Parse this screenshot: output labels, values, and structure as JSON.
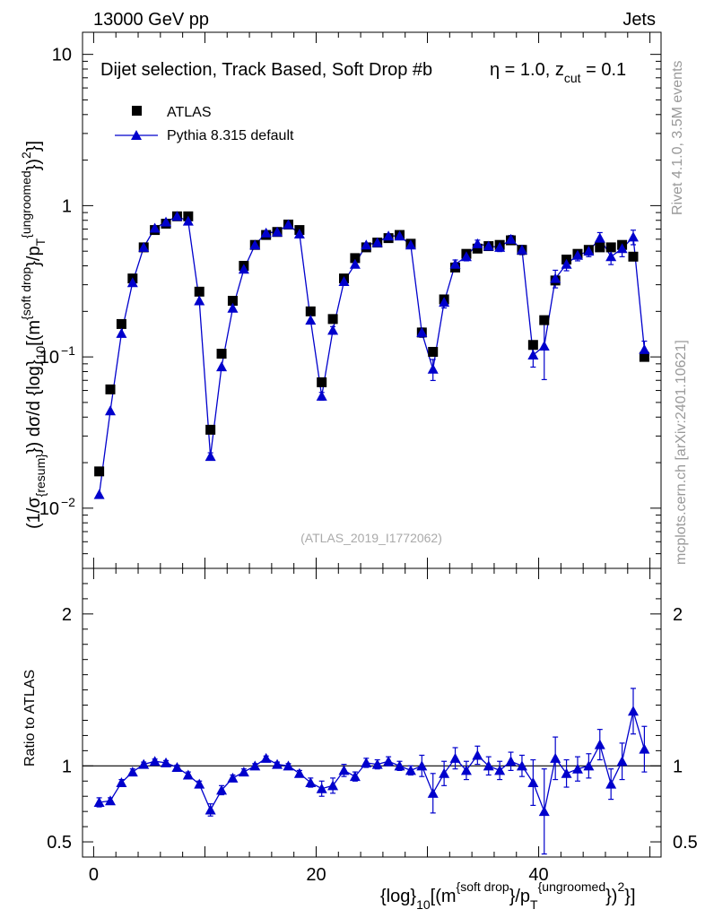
{
  "header": {
    "left": "13000 GeV pp",
    "right": "Jets"
  },
  "side_labels": {
    "rivet": "Rivet 4.1.0,  3.5M events",
    "mcplots": "mcplots.cern.ch [arXiv:2401.10621]"
  },
  "chart_data": [
    {
      "type": "scatter",
      "title": "Dijet selection, Track Based, Soft Drop #b",
      "title_tail_1": "η = 1.0, z",
      "title_tail_sub": "cut",
      "title_tail_2": " = 0.1",
      "ylabel": {
        "p1": "(1/σ",
        "s1": "{resum}",
        "p2": "}) dσ/d {log}",
        "s2": "10",
        "p3": "[(m",
        "sup1": "{soft drop",
        "p4": "}/p",
        "s3": "T",
        "sup2": "{ungroomed",
        "p5": "})",
        "sup3": "2",
        "p6": "}]"
      },
      "yscale": "log",
      "ylim": [
        0.004,
        14
      ],
      "xlim": [
        -1,
        51
      ],
      "y_ticks": [
        {
          "value": 10,
          "label": "10",
          "exp": ""
        },
        {
          "value": 1,
          "label": "1",
          "exp": ""
        },
        {
          "value": 0.1,
          "label": "10",
          "exp": "−1"
        },
        {
          "value": 0.01,
          "label": "10",
          "exp": "−2"
        }
      ],
      "watermark": "(ATLAS_2019_I1772062)",
      "legend": {
        "position": "top-left",
        "entries": [
          "ATLAS",
          "Pythia 8.315 default"
        ]
      },
      "series": [
        {
          "name": "ATLAS",
          "marker": "square",
          "color": "#000000",
          "x": [
            0.5,
            1.5,
            2.5,
            3.5,
            4.5,
            5.5,
            6.5,
            7.5,
            8.5,
            9.5,
            10.5,
            11.5,
            12.5,
            13.5,
            14.5,
            15.5,
            16.5,
            17.5,
            18.5,
            19.5,
            20.5,
            21.5,
            22.5,
            23.5,
            24.5,
            25.5,
            26.5,
            27.5,
            28.5,
            29.5,
            30.5,
            31.5,
            32.5,
            33.5,
            34.5,
            35.5,
            36.5,
            37.5,
            38.5,
            39.5,
            40.5,
            41.5,
            42.5,
            43.5,
            44.5,
            45.5,
            46.5,
            47.5,
            48.5,
            49.5
          ],
          "y": [
            0.0175,
            0.061,
            0.165,
            0.33,
            0.53,
            0.69,
            0.76,
            0.85,
            0.85,
            0.27,
            0.033,
            0.105,
            0.235,
            0.4,
            0.55,
            0.64,
            0.67,
            0.75,
            0.69,
            0.2,
            0.068,
            0.178,
            0.33,
            0.45,
            0.53,
            0.57,
            0.61,
            0.64,
            0.56,
            0.145,
            0.108,
            0.24,
            0.39,
            0.48,
            0.52,
            0.54,
            0.55,
            0.59,
            0.51,
            0.12,
            0.175,
            0.32,
            0.44,
            0.48,
            0.51,
            0.53,
            0.53,
            0.55,
            0.46,
            0.1
          ]
        },
        {
          "name": "Pythia 8.315 default",
          "marker": "triangle",
          "color": "#0000cc",
          "x": [
            0.5,
            1.5,
            2.5,
            3.5,
            4.5,
            5.5,
            6.5,
            7.5,
            8.5,
            9.5,
            10.5,
            11.5,
            12.5,
            13.5,
            14.5,
            15.5,
            16.5,
            17.5,
            18.5,
            19.5,
            20.5,
            21.5,
            22.5,
            23.5,
            24.5,
            25.5,
            26.5,
            27.5,
            28.5,
            29.5,
            30.5,
            31.5,
            32.5,
            33.5,
            34.5,
            35.5,
            36.5,
            37.5,
            38.5,
            39.5,
            40.5,
            41.5,
            42.5,
            43.5,
            44.5,
            45.5,
            46.5,
            47.5,
            48.5,
            49.5
          ],
          "y": [
            0.0123,
            0.044,
            0.143,
            0.31,
            0.53,
            0.71,
            0.78,
            0.85,
            0.79,
            0.235,
            0.022,
            0.086,
            0.21,
            0.38,
            0.55,
            0.66,
            0.67,
            0.75,
            0.65,
            0.175,
            0.055,
            0.15,
            0.315,
            0.41,
            0.55,
            0.57,
            0.63,
            0.63,
            0.55,
            0.145,
            0.083,
            0.23,
            0.41,
            0.46,
            0.56,
            0.54,
            0.53,
            0.6,
            0.51,
            0.103,
            0.118,
            0.33,
            0.41,
            0.47,
            0.5,
            0.61,
            0.46,
            0.52,
            0.62,
            0.112
          ]
        }
      ]
    },
    {
      "type": "line",
      "ylabel": "Ratio to ATLAS",
      "xlabel": {
        "p1": "{log}",
        "s1": "10",
        "p2": "[(m",
        "sup1": "{soft drop",
        "p3": "}/p",
        "s2": "T",
        "sup2": "{ungroomed",
        "p4": "})",
        "sup3": "2",
        "p5": "}]"
      },
      "ylim": [
        0.4,
        2.3
      ],
      "xlim": [
        -1,
        51
      ],
      "y_ticks": [
        {
          "value": 0.5,
          "label": "0.5"
        },
        {
          "value": 1,
          "label": "1"
        },
        {
          "value": 2,
          "label": "2"
        }
      ],
      "x_ticks": [
        {
          "value": 0,
          "label": "0"
        },
        {
          "value": 20,
          "label": "20"
        },
        {
          "value": 40,
          "label": "40"
        }
      ],
      "reference_line": 1,
      "series": [
        {
          "name": "Pythia 8.315 default / ATLAS",
          "color": "#0000cc",
          "x": [
            0.5,
            1.5,
            2.5,
            3.5,
            4.5,
            5.5,
            6.5,
            7.5,
            8.5,
            9.5,
            10.5,
            11.5,
            12.5,
            13.5,
            14.5,
            15.5,
            16.5,
            17.5,
            18.5,
            19.5,
            20.5,
            21.5,
            22.5,
            23.5,
            24.5,
            25.5,
            26.5,
            27.5,
            28.5,
            29.5,
            30.5,
            31.5,
            32.5,
            33.5,
            34.5,
            35.5,
            36.5,
            37.5,
            38.5,
            39.5,
            40.5,
            41.5,
            42.5,
            43.5,
            44.5,
            45.5,
            46.5,
            47.5,
            48.5,
            49.5
          ],
          "y": [
            0.76,
            0.77,
            0.89,
            0.96,
            1.01,
            1.03,
            1.02,
            0.99,
            0.94,
            0.88,
            0.71,
            0.84,
            0.92,
            0.96,
            1.0,
            1.05,
            1.01,
            1.0,
            0.95,
            0.89,
            0.85,
            0.87,
            0.97,
            0.93,
            1.02,
            1.01,
            1.03,
            1.0,
            0.97,
            1.0,
            0.82,
            0.95,
            1.05,
            0.97,
            1.07,
            1.0,
            0.97,
            1.03,
            1.0,
            0.89,
            0.7,
            1.05,
            0.95,
            0.98,
            1.0,
            1.14,
            0.88,
            1.03,
            1.36,
            1.11
          ],
          "err": [
            0.03,
            0.02,
            0.02,
            0.02,
            0.015,
            0.015,
            0.015,
            0.015,
            0.02,
            0.02,
            0.04,
            0.03,
            0.02,
            0.02,
            0.015,
            0.015,
            0.015,
            0.015,
            0.02,
            0.03,
            0.05,
            0.05,
            0.04,
            0.03,
            0.03,
            0.03,
            0.03,
            0.03,
            0.03,
            0.07,
            0.13,
            0.08,
            0.07,
            0.06,
            0.06,
            0.06,
            0.06,
            0.06,
            0.07,
            0.15,
            0.28,
            0.14,
            0.09,
            0.08,
            0.08,
            0.1,
            0.1,
            0.12,
            0.15,
            0.15
          ]
        }
      ]
    }
  ]
}
